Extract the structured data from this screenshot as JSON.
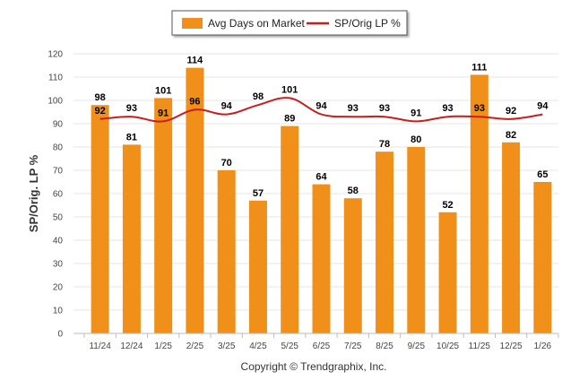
{
  "chart_data": {
    "type": "bar",
    "title": "",
    "ylabel": "SP/Orig. LP %",
    "xlabel": "",
    "ylim": [
      0,
      120
    ],
    "yticks": [
      0,
      10,
      20,
      30,
      40,
      50,
      60,
      70,
      80,
      90,
      100,
      110,
      120
    ],
    "grid": true,
    "legend_position": "top-center",
    "categories": [
      "11/24",
      "12/24",
      "1/25",
      "2/25",
      "3/25",
      "4/25",
      "5/25",
      "6/25",
      "7/25",
      "8/25",
      "9/25",
      "10/25",
      "11/25",
      "12/25",
      "1/26"
    ],
    "series": [
      {
        "name": "Avg Days on Market",
        "type": "bar",
        "color": "#F0901A",
        "values": [
          98,
          81,
          101,
          114,
          70,
          57,
          89,
          64,
          58,
          78,
          80,
          52,
          111,
          82,
          65
        ]
      },
      {
        "name": "SP/Orig LP %",
        "type": "line",
        "color": "#C81E1E",
        "values": [
          92,
          93,
          91,
          96,
          94,
          98,
          101,
          94,
          93,
          93,
          91,
          93,
          93,
          92,
          94
        ]
      }
    ],
    "footer": "Copyright © Trendgraphix, Inc."
  }
}
